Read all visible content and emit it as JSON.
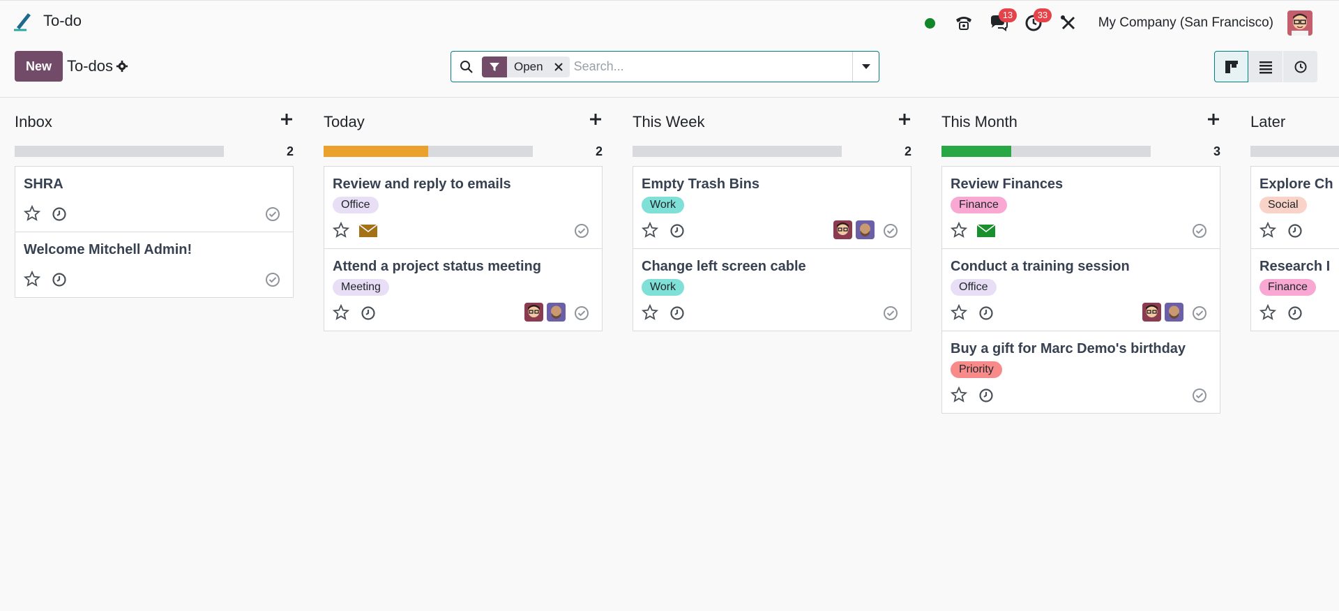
{
  "app": {
    "name": "To-do"
  },
  "systray": {
    "messages_count": "13",
    "activities_count": "33",
    "company": "My Company (San Francisco)"
  },
  "controlpanel": {
    "new_label": "New",
    "breadcrumb": "To-dos",
    "facet_value": "Open",
    "search_placeholder": "Search..."
  },
  "columns": [
    {
      "title": "Inbox",
      "count": "2",
      "progress": 0,
      "cards": [
        {
          "title": "SHRA"
        },
        {
          "title": "Welcome Mitchell Admin!"
        }
      ]
    },
    {
      "title": "Today",
      "count": "2",
      "progress": 0.5,
      "cards": [
        {
          "title": "Review and reply to emails",
          "tag": "Office"
        },
        {
          "title": "Attend a project status meeting",
          "tag": "Meeting"
        }
      ]
    },
    {
      "title": "This Week",
      "count": "2",
      "progress": 0,
      "cards": [
        {
          "title": "Empty Trash Bins",
          "tag": "Work"
        },
        {
          "title": "Change left screen cable",
          "tag": "Work"
        }
      ]
    },
    {
      "title": "This Month",
      "count": "3",
      "progress": 0.333,
      "cards": [
        {
          "title": "Review Finances",
          "tag": "Finance"
        },
        {
          "title": "Conduct a training session",
          "tag": "Office"
        },
        {
          "title": "Buy a gift for Marc Demo's birthday",
          "tag": "Priority"
        }
      ]
    },
    {
      "title": "Later",
      "count": "",
      "progress": 0,
      "cards": [
        {
          "title": "Explore Ch",
          "tag": "Social"
        },
        {
          "title": "Research I",
          "tag": "Finance"
        }
      ]
    }
  ],
  "colors": {
    "brand": "#714b67",
    "accent": "#017e84",
    "progress_today": "#eba22c",
    "progress_month": "#28a745",
    "tag_office": "#e8dff7",
    "tag_meeting": "#e8dff7",
    "tag_work": "#7fe0d8",
    "tag_finance": "#f9a8d4",
    "tag_priority": "#f88a8a",
    "tag_social": "#f9d3c7"
  }
}
